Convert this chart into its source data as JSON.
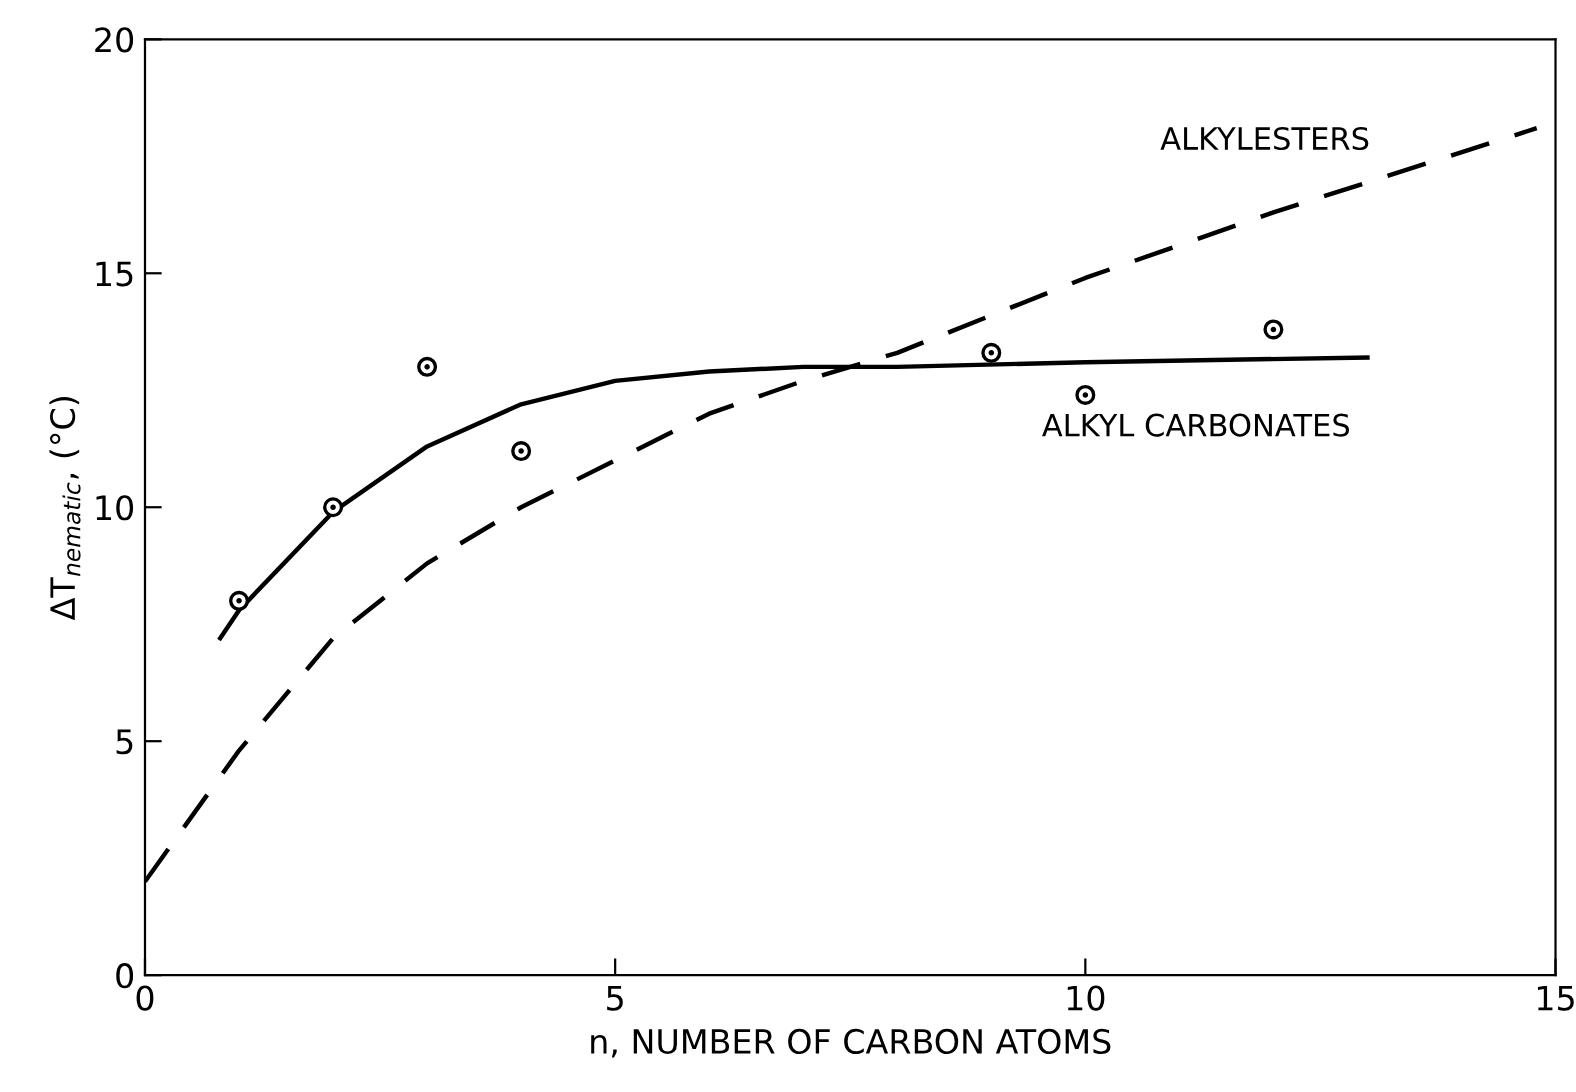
{
  "chart_data": {
    "type": "line",
    "xlabel": "n, NUMBER OF CARBON ATOMS",
    "ylabel": "ΔT$_{nematic}$, (°C)",
    "xlim": [
      0,
      15
    ],
    "ylim": [
      0,
      20
    ],
    "xticks": [
      0,
      5,
      10,
      15
    ],
    "yticks": [
      0,
      5,
      10,
      15,
      20
    ],
    "grid": false,
    "legend": false,
    "series": [
      {
        "type": "scatter",
        "marker": "circle",
        "color": "#000000",
        "x": [
          1,
          2,
          3,
          4,
          9,
          10,
          12
        ],
        "values": [
          8.0,
          10.0,
          13.0,
          11.2,
          13.3,
          12.4,
          13.8
        ]
      },
      {
        "name": "ALKYL CARBONATES",
        "line_style": "solid",
        "color": "#000000",
        "x": [
          0.8,
          1,
          2,
          3,
          4,
          5,
          6,
          7,
          8,
          10,
          13
        ],
        "values": [
          7.2,
          7.8,
          9.9,
          11.3,
          12.2,
          12.7,
          12.9,
          13.0,
          13.0,
          13.1,
          13.2
        ]
      },
      {
        "name": "ALKYLESTERS",
        "line_style": "dashed",
        "color": "#000000",
        "x": [
          0,
          1,
          2,
          3,
          4,
          5,
          6,
          7,
          8,
          10,
          12,
          14.8
        ],
        "values": [
          2.0,
          4.8,
          7.2,
          8.8,
          10.0,
          11.0,
          12.0,
          12.7,
          13.3,
          14.9,
          16.3,
          18.1
        ]
      }
    ]
  }
}
